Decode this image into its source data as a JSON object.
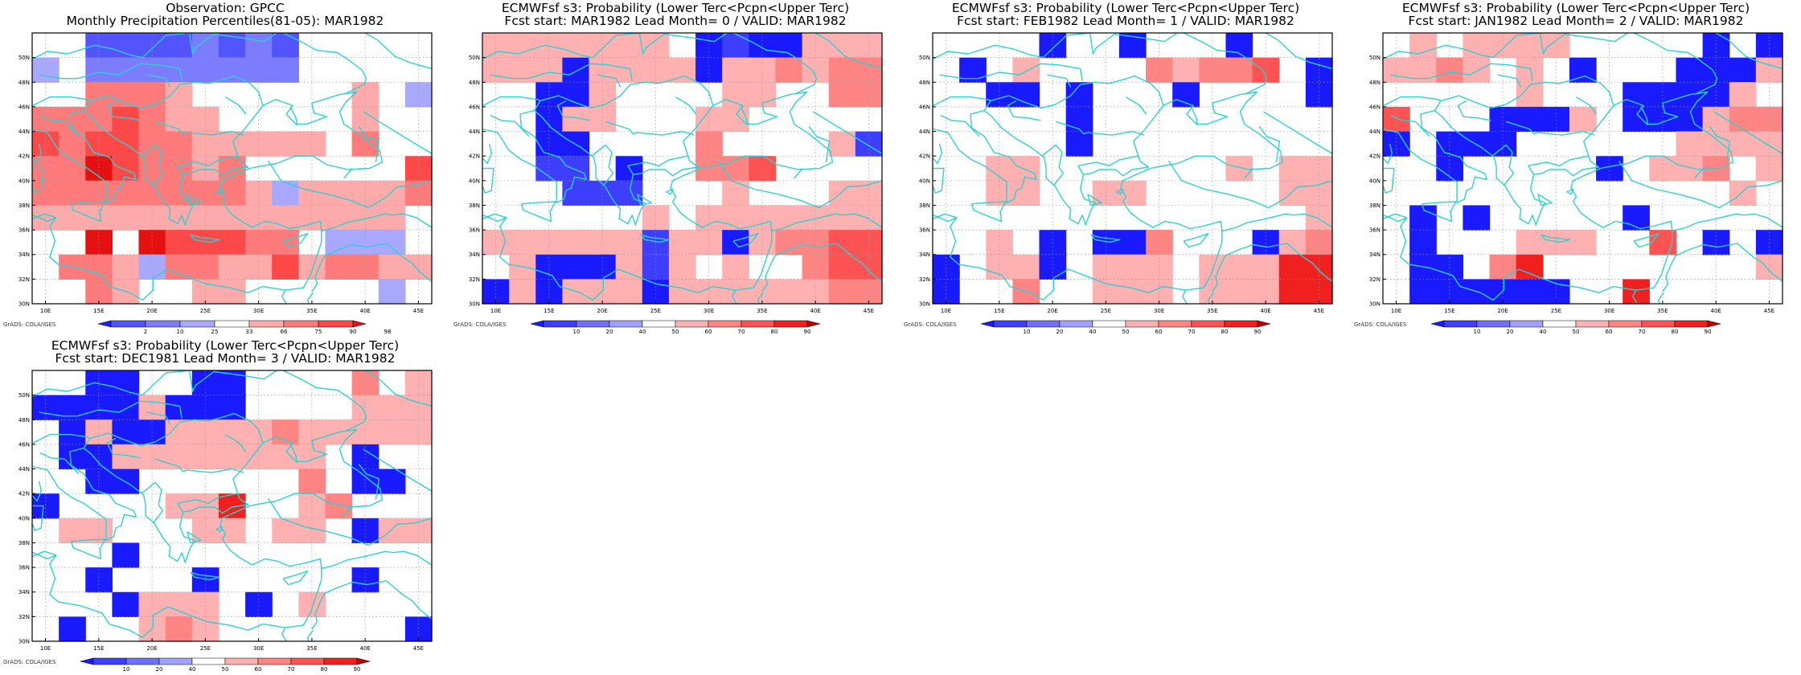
{
  "page_title": "Observation GPCC and ECMWFsf s3 tercile probability panels, MAR1982",
  "palettes": {
    "obs": [
      "#2020ff",
      "#5454ff",
      "#7c7cff",
      "#a8a8ff",
      "#ffffff",
      "#ffaaaa",
      "#ff7a7a",
      "#ff4848",
      "#e51010"
    ],
    "fcst": [
      "#1a1aff",
      "#3e3eff",
      "#7070ff",
      "#a0a0ff",
      "#ffffff",
      "#ffb0b0",
      "#ff8484",
      "#ff5252",
      "#f02020",
      "#c80000"
    ]
  },
  "map": {
    "coastline_color": "#2ed0d0",
    "x_ticks": [
      "10E",
      "15E",
      "20E",
      "25E",
      "30E",
      "35E",
      "40E",
      "45E"
    ],
    "y_ticks": [
      "30N",
      "32N",
      "34N",
      "36N",
      "38N",
      "40N",
      "42N",
      "44N",
      "46N",
      "48N",
      "50N"
    ],
    "grid": true
  },
  "credit": "GrADS: COLA/IGES",
  "chart_data": [
    {
      "type": "heatmap",
      "title": "Observation: GPCC",
      "subtitle": "Monthly Precipitation Percentiles(81-05): MAR1982",
      "colorbar_labels": [
        "2",
        "10",
        "25",
        "33",
        "66",
        "75",
        "90",
        "98"
      ],
      "palette": "obs",
      "x": [
        10,
        12.5,
        15,
        17.5,
        20,
        22.5,
        25,
        27.5,
        30,
        32.5,
        35,
        37.5,
        40,
        42.5,
        45
      ],
      "y": [
        51,
        49,
        47,
        45,
        43,
        41,
        39,
        37,
        35,
        33,
        31
      ],
      "values": [
        [
          4,
          4,
          1,
          1,
          1,
          1,
          2,
          1,
          2,
          1,
          4,
          4,
          4,
          4,
          4
        ],
        [
          3,
          4,
          2,
          2,
          2,
          2,
          2,
          2,
          2,
          2,
          4,
          4,
          4,
          4,
          4
        ],
        [
          4,
          4,
          6,
          6,
          6,
          5,
          4,
          4,
          4,
          4,
          4,
          4,
          5,
          4,
          3
        ],
        [
          6,
          6,
          6,
          7,
          6,
          5,
          5,
          4,
          4,
          4,
          4,
          4,
          5,
          4,
          4
        ],
        [
          7,
          6,
          7,
          7,
          6,
          6,
          5,
          5,
          5,
          5,
          5,
          4,
          6,
          4,
          4
        ],
        [
          6,
          6,
          8,
          7,
          6,
          6,
          5,
          6,
          4,
          4,
          4,
          4,
          4,
          4,
          7
        ],
        [
          6,
          6,
          6,
          6,
          6,
          6,
          6,
          6,
          5,
          3,
          5,
          5,
          5,
          5,
          6
        ],
        [
          5,
          5,
          5,
          5,
          5,
          5,
          5,
          5,
          5,
          5,
          5,
          5,
          5,
          5,
          4
        ],
        [
          4,
          4,
          8,
          4,
          8,
          7,
          7,
          7,
          6,
          6,
          4,
          3,
          3,
          3,
          4
        ],
        [
          4,
          6,
          6,
          5,
          3,
          6,
          6,
          5,
          5,
          7,
          5,
          6,
          6,
          5,
          5
        ],
        [
          4,
          4,
          6,
          5,
          4,
          4,
          5,
          5,
          4,
          4,
          4,
          4,
          4,
          3,
          4
        ]
      ]
    },
    {
      "type": "heatmap",
      "title": "ECMWFsf s3: Probability (Lower Terc<Pcpn<Upper Terc)",
      "subtitle": "Fcst start: MAR1982  Lead Month= 0 / VALID: MAR1982",
      "colorbar_labels": [
        "10",
        "20",
        "40",
        "50",
        "60",
        "70",
        "80",
        "90"
      ],
      "palette": "fcst",
      "x": [
        10,
        12.5,
        15,
        17.5,
        20,
        22.5,
        25,
        27.5,
        30,
        32.5,
        35,
        37.5,
        40,
        42.5,
        45
      ],
      "y": [
        51,
        49,
        47,
        45,
        43,
        41,
        39,
        37,
        35,
        33,
        31
      ],
      "values": [
        [
          5,
          5,
          5,
          5,
          5,
          5,
          5,
          4,
          0,
          1,
          0,
          0,
          5,
          5,
          5
        ],
        [
          5,
          5,
          5,
          0,
          5,
          5,
          5,
          5,
          0,
          5,
          5,
          6,
          5,
          6,
          6
        ],
        [
          4,
          4,
          0,
          0,
          5,
          4,
          4,
          4,
          4,
          5,
          5,
          4,
          4,
          6,
          6
        ],
        [
          4,
          4,
          0,
          5,
          5,
          4,
          4,
          4,
          5,
          5,
          4,
          4,
          4,
          4,
          4
        ],
        [
          4,
          4,
          0,
          0,
          4,
          4,
          4,
          4,
          6,
          4,
          4,
          4,
          4,
          5,
          1
        ],
        [
          4,
          4,
          1,
          1,
          4,
          0,
          4,
          4,
          6,
          6,
          7,
          4,
          4,
          4,
          4
        ],
        [
          4,
          4,
          4,
          1,
          1,
          1,
          4,
          4,
          4,
          5,
          4,
          4,
          4,
          5,
          5
        ],
        [
          4,
          4,
          4,
          4,
          4,
          4,
          5,
          4,
          5,
          5,
          5,
          5,
          5,
          5,
          5
        ],
        [
          5,
          5,
          5,
          5,
          5,
          5,
          1,
          5,
          5,
          0,
          5,
          6,
          6,
          7,
          7
        ],
        [
          4,
          5,
          0,
          0,
          0,
          5,
          1,
          5,
          4,
          5,
          4,
          4,
          6,
          7,
          7
        ],
        [
          0,
          5,
          0,
          5,
          5,
          5,
          0,
          5,
          5,
          5,
          5,
          5,
          5,
          6,
          6
        ]
      ]
    },
    {
      "type": "heatmap",
      "title": "ECMWFsf s3: Probability (Lower Terc<Pcpn<Upper Terc)",
      "subtitle": "Fcst start: FEB1982  Lead Month= 1 / VALID: MAR1982",
      "colorbar_labels": [
        "10",
        "20",
        "40",
        "50",
        "60",
        "70",
        "80",
        "90"
      ],
      "palette": "fcst",
      "x": [
        10,
        12.5,
        15,
        17.5,
        20,
        22.5,
        25,
        27.5,
        30,
        32.5,
        35,
        37.5,
        40,
        42.5,
        45
      ],
      "y": [
        51,
        49,
        47,
        45,
        43,
        41,
        39,
        37,
        35,
        33,
        31
      ],
      "values": [
        [
          4,
          4,
          4,
          4,
          0,
          4,
          4,
          0,
          4,
          4,
          4,
          0,
          4,
          4,
          4
        ],
        [
          4,
          0,
          4,
          5,
          4,
          4,
          4,
          4,
          6,
          5,
          6,
          6,
          7,
          4,
          0
        ],
        [
          4,
          4,
          0,
          0,
          4,
          0,
          4,
          4,
          4,
          0,
          4,
          4,
          4,
          4,
          0
        ],
        [
          4,
          4,
          4,
          4,
          4,
          0,
          4,
          4,
          4,
          4,
          4,
          4,
          4,
          4,
          4
        ],
        [
          4,
          4,
          4,
          4,
          4,
          0,
          4,
          4,
          4,
          4,
          4,
          4,
          4,
          4,
          4
        ],
        [
          4,
          4,
          5,
          5,
          4,
          4,
          4,
          4,
          4,
          4,
          4,
          5,
          4,
          5,
          5
        ],
        [
          4,
          4,
          5,
          5,
          4,
          4,
          5,
          5,
          4,
          4,
          4,
          4,
          4,
          5,
          5
        ],
        [
          4,
          4,
          4,
          4,
          4,
          4,
          4,
          4,
          4,
          4,
          4,
          4,
          4,
          4,
          5
        ],
        [
          4,
          4,
          5,
          4,
          0,
          4,
          0,
          0,
          6,
          4,
          4,
          4,
          0,
          5,
          6
        ],
        [
          0,
          4,
          5,
          5,
          0,
          4,
          5,
          5,
          5,
          4,
          5,
          5,
          5,
          8,
          8
        ],
        [
          0,
          4,
          4,
          6,
          4,
          4,
          5,
          5,
          5,
          4,
          5,
          5,
          5,
          8,
          8
        ]
      ]
    },
    {
      "type": "heatmap",
      "title": "ECMWFsf s3: Probability (Lower Terc<Pcpn<Upper Terc)",
      "subtitle": "Fcst start: JAN1982  Lead Month= 2 / VALID: MAR1982",
      "colorbar_labels": [
        "10",
        "20",
        "40",
        "50",
        "60",
        "70",
        "80",
        "90"
      ],
      "palette": "fcst",
      "x": [
        10,
        12.5,
        15,
        17.5,
        20,
        22.5,
        25,
        27.5,
        30,
        32.5,
        35,
        37.5,
        40,
        42.5,
        45
      ],
      "y": [
        51,
        49,
        47,
        45,
        43,
        41,
        39,
        37,
        35,
        33,
        31
      ],
      "values": [
        [
          4,
          5,
          4,
          5,
          5,
          5,
          5,
          4,
          4,
          4,
          4,
          4,
          0,
          4,
          0
        ],
        [
          5,
          5,
          6,
          5,
          4,
          5,
          4,
          0,
          4,
          4,
          4,
          0,
          0,
          0,
          5
        ],
        [
          4,
          4,
          4,
          4,
          4,
          5,
          4,
          4,
          4,
          0,
          0,
          0,
          0,
          5,
          4
        ],
        [
          7,
          4,
          4,
          4,
          0,
          0,
          0,
          5,
          4,
          0,
          0,
          0,
          5,
          6,
          6
        ],
        [
          0,
          4,
          0,
          0,
          0,
          4,
          4,
          4,
          4,
          4,
          4,
          5,
          5,
          5,
          5
        ],
        [
          4,
          4,
          0,
          4,
          4,
          4,
          4,
          4,
          0,
          4,
          5,
          5,
          6,
          4,
          5
        ],
        [
          4,
          4,
          4,
          4,
          4,
          4,
          4,
          4,
          4,
          4,
          4,
          4,
          4,
          5,
          4
        ],
        [
          4,
          0,
          4,
          0,
          4,
          4,
          4,
          4,
          4,
          0,
          4,
          4,
          4,
          4,
          4
        ],
        [
          4,
          0,
          4,
          4,
          4,
          5,
          5,
          5,
          4,
          4,
          7,
          4,
          0,
          4,
          0
        ],
        [
          4,
          0,
          0,
          4,
          6,
          8,
          4,
          4,
          4,
          4,
          4,
          4,
          4,
          4,
          5
        ],
        [
          4,
          0,
          0,
          0,
          0,
          0,
          0,
          4,
          4,
          8,
          4,
          4,
          4,
          4,
          4
        ]
      ]
    },
    {
      "type": "heatmap",
      "title": "ECMWFsf s3: Probability (Lower Terc<Pcpn<Upper Terc)",
      "subtitle": "Fcst start: DEC1981  Lead Month= 3 / VALID: MAR1982",
      "colorbar_labels": [
        "10",
        "20",
        "40",
        "50",
        "60",
        "70",
        "80",
        "90"
      ],
      "palette": "fcst",
      "x": [
        10,
        12.5,
        15,
        17.5,
        20,
        22.5,
        25,
        27.5,
        30,
        32.5,
        35,
        37.5,
        40,
        42.5,
        45
      ],
      "y": [
        51,
        49,
        47,
        45,
        43,
        41,
        39,
        37,
        35,
        33,
        31
      ],
      "values": [
        [
          4,
          4,
          0,
          0,
          4,
          4,
          0,
          0,
          4,
          4,
          4,
          4,
          6,
          4,
          5
        ],
        [
          0,
          0,
          0,
          0,
          5,
          0,
          0,
          0,
          4,
          4,
          4,
          4,
          5,
          5,
          5
        ],
        [
          4,
          0,
          5,
          0,
          0,
          5,
          5,
          5,
          5,
          6,
          5,
          5,
          5,
          5,
          5
        ],
        [
          4,
          0,
          0,
          5,
          5,
          5,
          5,
          5,
          5,
          5,
          5,
          4,
          0,
          4,
          4
        ],
        [
          4,
          4,
          0,
          0,
          4,
          4,
          4,
          4,
          4,
          4,
          6,
          4,
          0,
          0,
          4
        ],
        [
          0,
          4,
          4,
          4,
          4,
          5,
          5,
          8,
          4,
          4,
          5,
          6,
          4,
          4,
          4
        ],
        [
          4,
          5,
          5,
          4,
          4,
          4,
          5,
          5,
          4,
          5,
          5,
          4,
          0,
          5,
          5
        ],
        [
          4,
          4,
          4,
          0,
          4,
          4,
          4,
          4,
          4,
          4,
          4,
          4,
          4,
          4,
          4
        ],
        [
          4,
          4,
          0,
          4,
          4,
          4,
          0,
          4,
          4,
          4,
          4,
          4,
          0,
          4,
          4
        ],
        [
          4,
          4,
          4,
          0,
          5,
          5,
          5,
          4,
          0,
          4,
          5,
          4,
          4,
          4,
          4
        ],
        [
          4,
          0,
          4,
          4,
          5,
          6,
          5,
          4,
          4,
          4,
          4,
          4,
          4,
          4,
          0
        ]
      ]
    }
  ]
}
